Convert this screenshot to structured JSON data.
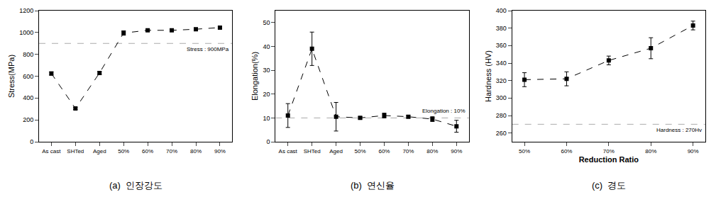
{
  "chart_data": [
    {
      "type": "line",
      "title": "(a)  인장강도",
      "ylabel": "Stress(MPa)",
      "categories": [
        "As cast",
        "SHTed",
        "Aged",
        "50%",
        "60%",
        "70%",
        "80%",
        "90%"
      ],
      "values": [
        625,
        305,
        630,
        995,
        1020,
        1020,
        1030,
        1045
      ],
      "y_err": [
        15,
        10,
        15,
        20,
        10,
        10,
        10,
        10
      ],
      "color": "black",
      "marker": "square",
      "line_style": "dashed",
      "hline": {
        "y": 900,
        "label": "Stress : 900MPa",
        "color": "#aaaaaa",
        "line_style": "dashed"
      },
      "ylim": [
        0,
        1200
      ],
      "yticks": [
        0,
        200,
        400,
        600,
        800,
        1000,
        1200
      ],
      "grid": false
    },
    {
      "type": "line",
      "title": "(b)  연신율",
      "ylabel": "Elongation(%)",
      "categories": [
        "As cast",
        "SHTed",
        "Aged",
        "50%",
        "60%",
        "70%",
        "80%",
        "90%"
      ],
      "values": [
        11,
        39,
        10.5,
        10,
        11,
        10.5,
        9.5,
        6.5
      ],
      "y_err": [
        5,
        7,
        6,
        0.5,
        1,
        0.5,
        1,
        2.5
      ],
      "color": "black",
      "marker": "square",
      "line_style": "dashed",
      "hline": {
        "y": 10,
        "label": "Elongation : 10%",
        "color": "#aaaaaa",
        "line_style": "dashed"
      },
      "ylim": [
        0,
        55
      ],
      "yticks": [
        0,
        10,
        20,
        30,
        40,
        50
      ],
      "grid": false
    },
    {
      "type": "line",
      "title": "(c)  경도",
      "ylabel": "Hardness (HV)",
      "xlabel": "Reduction Ratio",
      "categories": [
        "50%",
        "60%",
        "70%",
        "80%",
        "90%"
      ],
      "values": [
        321,
        322,
        343,
        357,
        383
      ],
      "y_err": [
        8,
        8,
        5,
        12,
        5
      ],
      "color": "black",
      "marker": "square",
      "line_style": "dashed",
      "hline": {
        "y": 270,
        "label": "Hardness : 270Hv",
        "color": "#aaaaaa",
        "line_style": "dashed"
      },
      "ylim": [
        250,
        400
      ],
      "yticks": [
        260,
        280,
        300,
        320,
        340,
        360,
        380,
        400
      ],
      "grid": false
    }
  ]
}
